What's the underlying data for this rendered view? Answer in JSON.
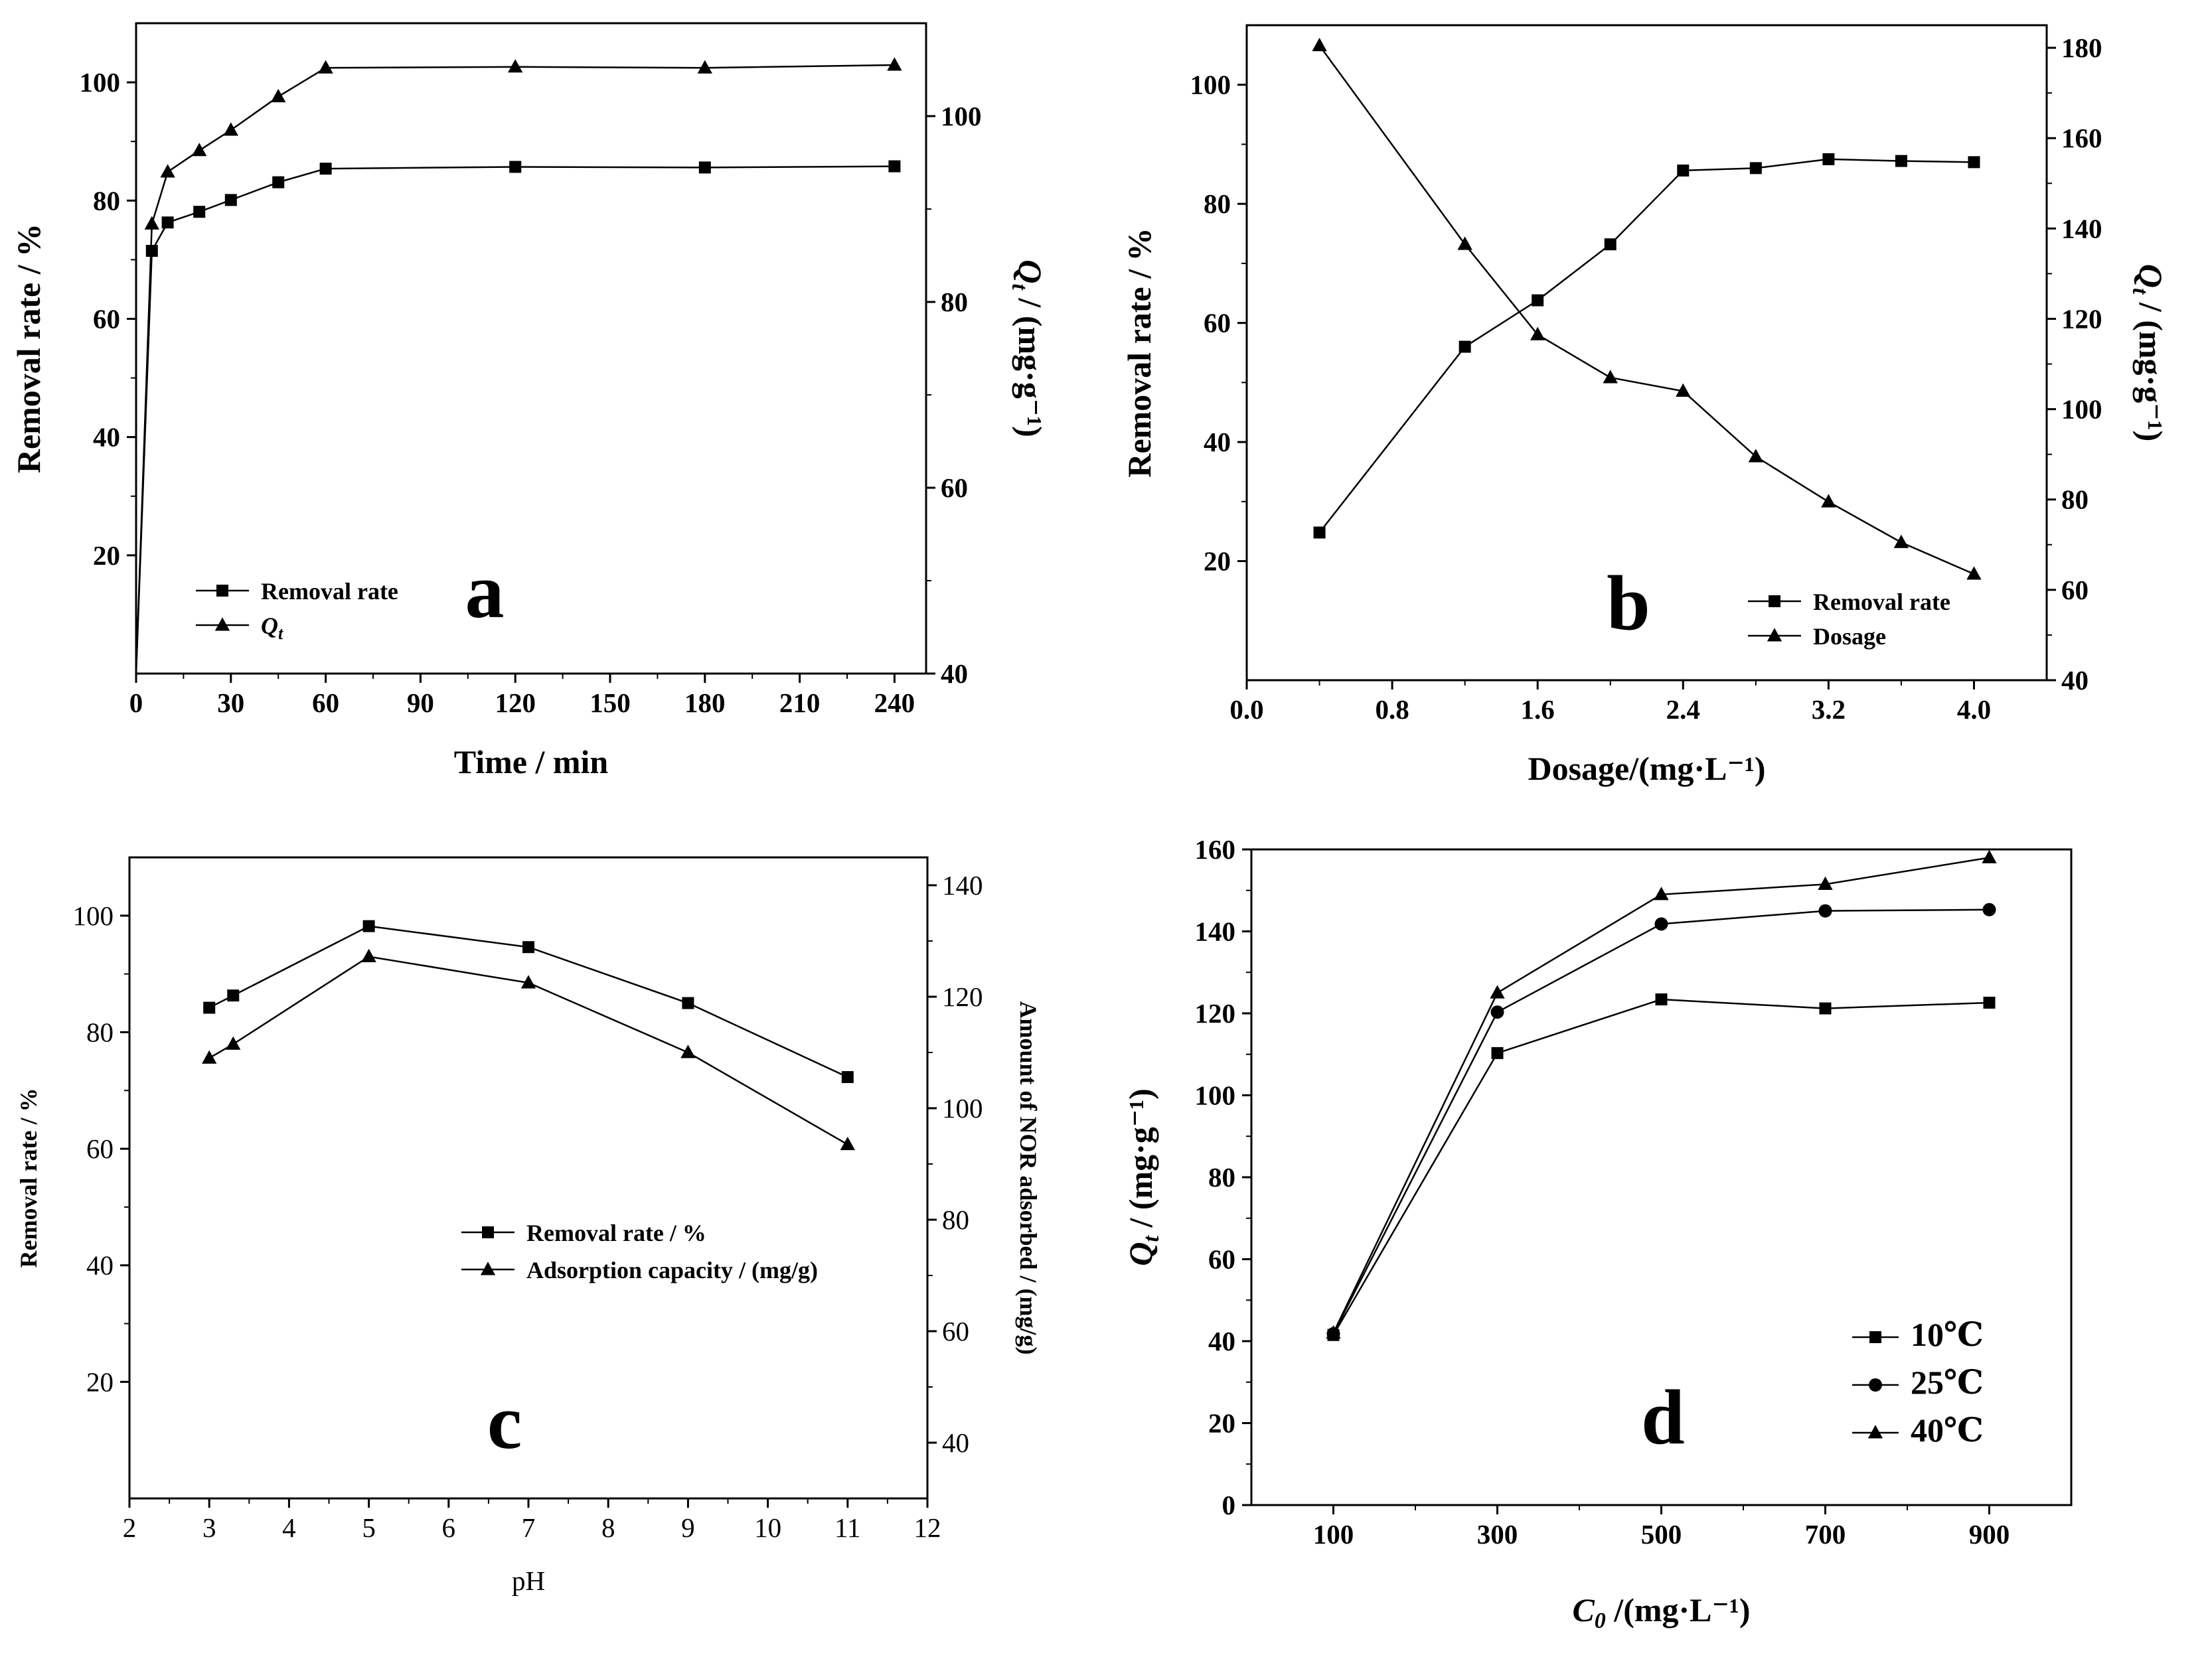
{
  "chart_data": [
    {
      "id": "a",
      "type": "line",
      "panel_letter": "a",
      "xlabel": "Time / min",
      "ylabel": "Removal rate / %",
      "ylabel2_main": "Q",
      "ylabel2_sub": "t",
      "ylabel2_rest": " / (mg·g⁻¹)",
      "xlim": [
        0,
        250
      ],
      "ylim": [
        0,
        110
      ],
      "y2lim": [
        40,
        110
      ],
      "xticks": [
        0,
        30,
        60,
        90,
        120,
        150,
        180,
        210,
        240
      ],
      "yticks": [
        20,
        40,
        60,
        80,
        100
      ],
      "y2ticks": [
        40,
        60,
        80,
        100
      ],
      "legend": [
        "Removal rate",
        "Q"
      ],
      "legend_sub": [
        "",
        "t"
      ],
      "series": [
        {
          "name": "Removal rate",
          "axis": "left",
          "marker": "square",
          "x": [
            0,
            5,
            10,
            20,
            30,
            45,
            60,
            120,
            180,
            240
          ],
          "values": [
            0,
            71.5,
            76.3,
            78.1,
            80.1,
            83.1,
            85.4,
            85.7,
            85.6,
            85.8
          ]
        },
        {
          "name": "Qt",
          "axis": "right",
          "marker": "triangle",
          "x": [
            0,
            5,
            10,
            20,
            30,
            45,
            60,
            120,
            180,
            240
          ],
          "values": [
            40,
            88.4,
            94.0,
            96.3,
            98.5,
            102.1,
            105.2,
            105.3,
            105.2,
            105.5
          ]
        }
      ]
    },
    {
      "id": "b",
      "type": "line",
      "panel_letter": "b",
      "xlabel": "Dosage/(mg·L⁻¹)",
      "ylabel": "Removal rate / %",
      "ylabel2_main": "Q",
      "ylabel2_sub": "t",
      "ylabel2_rest": " / (mg·g⁻¹)",
      "xlim": [
        0,
        4.4
      ],
      "ylim": [
        0,
        110
      ],
      "y2lim": [
        40,
        185
      ],
      "xticks": [
        "0.0",
        "0.8",
        "1.6",
        "2.4",
        "3.2",
        "4.0"
      ],
      "yticks": [
        20,
        40,
        60,
        80,
        100
      ],
      "y2ticks": [
        40,
        60,
        80,
        100,
        120,
        140,
        160,
        180
      ],
      "legend": [
        "Removal rate",
        "Dosage"
      ],
      "series": [
        {
          "name": "Removal rate",
          "axis": "left",
          "marker": "square",
          "x": [
            0.4,
            1.2,
            1.6,
            2.0,
            2.4,
            2.8,
            3.2,
            3.6,
            4.0
          ],
          "values": [
            24.8,
            56.0,
            63.8,
            73.2,
            85.6,
            86.0,
            87.5,
            87.2,
            87.0
          ]
        },
        {
          "name": "Dosage",
          "axis": "right",
          "marker": "triangle",
          "x": [
            0.4,
            1.2,
            1.6,
            2.0,
            2.4,
            2.8,
            3.2,
            3.6,
            4.0
          ],
          "values": [
            180.5,
            136.5,
            116.5,
            107.0,
            104.0,
            89.5,
            79.5,
            70.5,
            63.5
          ]
        }
      ]
    },
    {
      "id": "c",
      "type": "line",
      "panel_letter": "c",
      "xlabel": "pH",
      "ylabel": "Removal rate / %",
      "ylabel2_main": "Amount of NOR adsorbed / (mg/g)",
      "ylabel2_sub": "",
      "ylabel2_rest": "",
      "xlim": [
        2,
        12
      ],
      "ylim": [
        0,
        110
      ],
      "y2lim": [
        30,
        145
      ],
      "xticks": [
        2,
        3,
        4,
        5,
        6,
        7,
        8,
        9,
        10,
        11,
        12
      ],
      "yticks": [
        20,
        40,
        60,
        80,
        100
      ],
      "y2ticks": [
        40,
        60,
        80,
        100,
        120,
        140
      ],
      "legend": [
        "Removal rate  / %",
        "Adsorption capacity / (mg/g)"
      ],
      "series": [
        {
          "name": "Removal rate / %",
          "axis": "left",
          "marker": "square",
          "x": [
            3,
            3.3,
            5,
            7,
            9,
            11
          ],
          "values": [
            84.2,
            86.3,
            98.2,
            94.6,
            85.0,
            72.3
          ]
        },
        {
          "name": "Adsorption capacity / (mg/g)",
          "axis": "right",
          "marker": "triangle",
          "x": [
            3,
            3.3,
            5,
            7,
            9,
            11
          ],
          "values": [
            109.0,
            111.5,
            127.2,
            122.5,
            110.0,
            93.5
          ]
        }
      ]
    },
    {
      "id": "d",
      "type": "line",
      "panel_letter": "d",
      "xlabel_main": "C",
      "xlabel_sub": "0",
      "xlabel_rest": " /(mg·L⁻¹)",
      "ylabel_main": "Q",
      "ylabel_sub": "t",
      "ylabel_rest": " / (mg·g⁻¹)",
      "xlim": [
        0,
        1000
      ],
      "ylim": [
        0,
        160
      ],
      "xticks": [
        100,
        300,
        500,
        700,
        900
      ],
      "yticks": [
        0,
        20,
        40,
        60,
        80,
        100,
        120,
        140,
        160
      ],
      "legend": [
        "10℃",
        "25℃",
        "40℃"
      ],
      "series": [
        {
          "name": "10℃",
          "marker": "square",
          "x": [
            100,
            300,
            500,
            700,
            900
          ],
          "values": [
            41.5,
            110.3,
            123.4,
            121.2,
            122.6
          ]
        },
        {
          "name": "25℃",
          "marker": "circle",
          "x": [
            100,
            300,
            500,
            700,
            900
          ],
          "values": [
            41.8,
            120.3,
            141.8,
            145.0,
            145.3
          ]
        },
        {
          "name": "40℃",
          "marker": "triangle",
          "x": [
            100,
            300,
            500,
            700,
            900
          ],
          "values": [
            42.0,
            125.0,
            149.0,
            151.5,
            158.0
          ]
        }
      ]
    }
  ]
}
